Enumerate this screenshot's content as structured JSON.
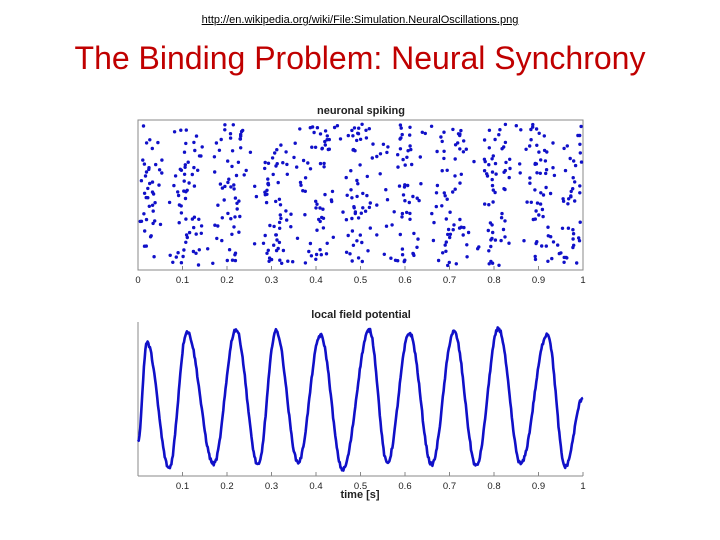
{
  "slide": {
    "source_url": "http://en.wikipedia.org/wiki/File:Simulation.NeuralOscillations.png",
    "title": "The Binding Problem: Neural Synchrony"
  },
  "colors": {
    "title": "#c00000",
    "series": "#1010c8",
    "axis": "#444444"
  },
  "chart_data": [
    {
      "type": "scatter",
      "title": "neuronal spiking",
      "xlabel": "",
      "ylabel": "",
      "xlim": [
        0,
        1
      ],
      "xticks": [
        "0",
        "0.1",
        "0.2",
        "0.3",
        "0.4",
        "0.5",
        "0.6",
        "0.7",
        "0.8",
        "0.9",
        "1"
      ],
      "burst_centers": [
        0.02,
        0.11,
        0.21,
        0.31,
        0.41,
        0.5,
        0.6,
        0.7,
        0.8,
        0.9,
        0.99
      ],
      "spikes_per_burst": 60,
      "neuron_count": 100,
      "grid": false
    },
    {
      "type": "line",
      "title": "local field potential",
      "xlabel": "time [s]",
      "ylabel": "",
      "xlim": [
        0,
        1
      ],
      "xticks": [
        "0.1",
        "0.2",
        "0.3",
        "0.4",
        "0.5",
        "0.6",
        "0.7",
        "0.8",
        "0.9",
        "1"
      ],
      "oscillation_frequency_hz": 10,
      "peak_times": [
        0.02,
        0.11,
        0.22,
        0.31,
        0.41,
        0.52,
        0.61,
        0.71,
        0.81,
        0.92
      ],
      "trough_times": [
        0.07,
        0.17,
        0.27,
        0.36,
        0.46,
        0.56,
        0.66,
        0.76,
        0.86,
        0.96
      ],
      "grid": false
    }
  ]
}
